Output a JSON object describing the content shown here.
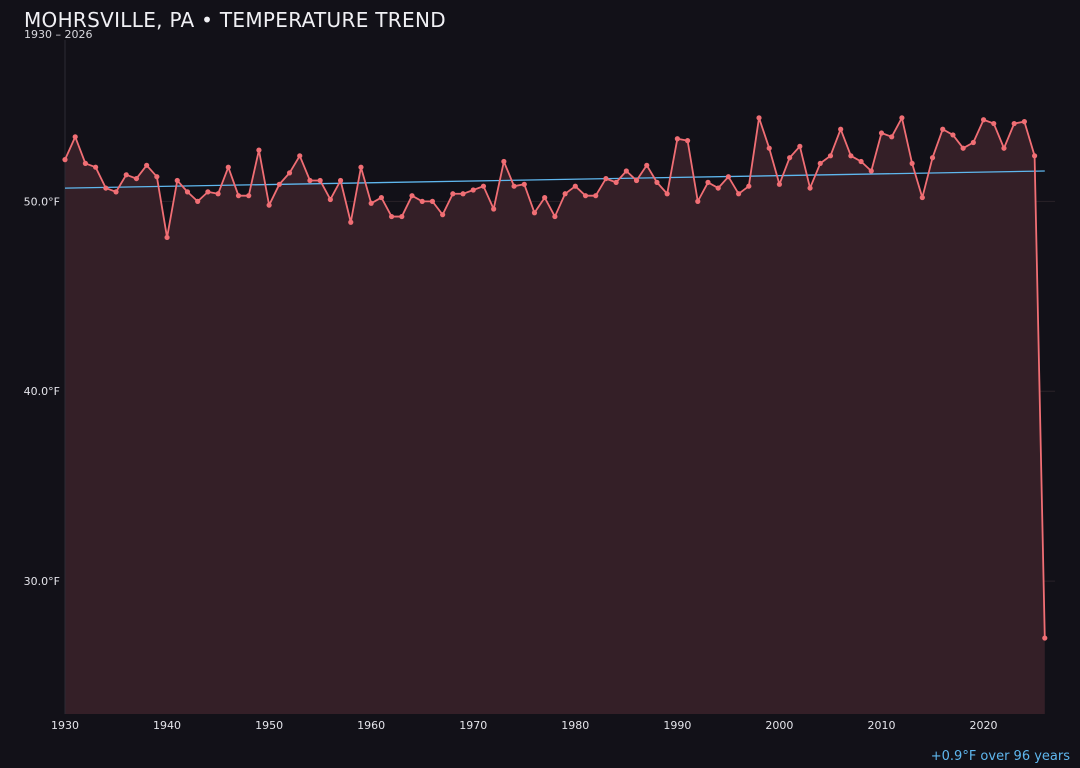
{
  "header": {
    "title": "MOHRSVILLE, PA • TEMPERATURE TREND",
    "subtitle": "1930 – 2026"
  },
  "footer": {
    "trend_note": "+0.9°F over 96 years"
  },
  "colors": {
    "background": "#121118",
    "series_line": "#f06e74",
    "area_fill": "#341f27",
    "trend_line": "#5fb7ee",
    "grid": "#2a2229"
  },
  "chart_data": {
    "type": "line",
    "x": [
      1930,
      1931,
      1932,
      1933,
      1934,
      1935,
      1936,
      1937,
      1938,
      1939,
      1940,
      1941,
      1942,
      1943,
      1944,
      1945,
      1946,
      1947,
      1948,
      1949,
      1950,
      1951,
      1952,
      1953,
      1954,
      1955,
      1956,
      1957,
      1958,
      1959,
      1960,
      1961,
      1962,
      1963,
      1964,
      1965,
      1966,
      1967,
      1968,
      1969,
      1970,
      1971,
      1972,
      1973,
      1974,
      1975,
      1976,
      1977,
      1978,
      1979,
      1980,
      1981,
      1982,
      1983,
      1984,
      1985,
      1986,
      1987,
      1988,
      1989,
      1990,
      1991,
      1992,
      1993,
      1994,
      1995,
      1996,
      1997,
      1998,
      1999,
      2000,
      2001,
      2002,
      2003,
      2004,
      2005,
      2006,
      2007,
      2008,
      2009,
      2010,
      2011,
      2012,
      2013,
      2014,
      2015,
      2016,
      2017,
      2018,
      2019,
      2020,
      2021,
      2022,
      2023,
      2024,
      2025,
      2026
    ],
    "series": [
      {
        "name": "",
        "values": [
          52.2,
          53.4,
          52.0,
          51.8,
          50.7,
          50.5,
          51.4,
          51.2,
          51.9,
          51.3,
          48.1,
          51.1,
          50.5,
          50.0,
          50.5,
          50.4,
          51.8,
          50.3,
          50.3,
          52.7,
          49.8,
          50.9,
          51.5,
          52.4,
          51.1,
          51.1,
          50.1,
          51.1,
          48.9,
          51.8,
          49.9,
          50.2,
          49.2,
          49.2,
          50.3,
          50.0,
          50.0,
          49.3,
          50.4,
          50.4,
          50.6,
          50.8,
          49.6,
          52.1,
          50.8,
          50.9,
          49.4,
          50.2,
          49.2,
          50.4,
          50.8,
          50.3,
          50.3,
          51.2,
          51.0,
          51.6,
          51.1,
          51.9,
          51.0,
          50.4,
          53.3,
          53.2,
          50.0,
          51.0,
          50.7,
          51.3,
          50.4,
          50.8,
          54.4,
          52.8,
          50.9,
          52.3,
          52.9,
          50.7,
          52.0,
          52.4,
          53.8,
          52.4,
          52.1,
          51.6,
          53.6,
          53.4,
          54.4,
          52.0,
          50.2,
          52.3,
          53.8,
          53.5,
          52.8,
          53.1,
          54.3,
          54.1,
          52.8,
          54.1,
          54.2,
          52.4,
          27.0
        ]
      }
    ],
    "trend": {
      "x": [
        1930,
        2026
      ],
      "y": [
        50.7,
        51.6
      ]
    },
    "yticks": [
      30.0,
      40.0,
      50.0
    ],
    "ytick_labels": [
      "30.0°F",
      "40.0°F",
      "50.0°F"
    ],
    "xticks": [
      1930,
      1940,
      1950,
      1960,
      1970,
      1980,
      1990,
      2000,
      2010,
      2020
    ],
    "ylim": [
      23.0,
      58.5
    ],
    "xlim": [
      1930,
      2027
    ],
    "grid": true,
    "legend": "none"
  }
}
